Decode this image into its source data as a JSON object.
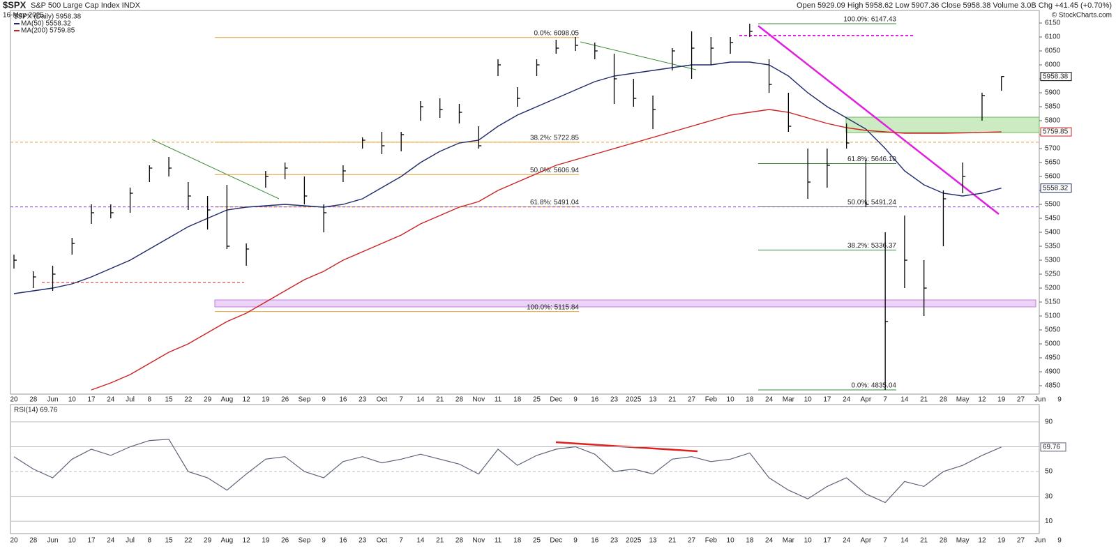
{
  "header": {
    "symbol": "$SPX",
    "name": "S&P 500 Large Cap Index INDX",
    "date": "16-May-2025",
    "quote": "Open 5929.09 High 5958.62 Low 5907.36 Close 5958.38 Volume 3.0B Chg +41.45 (+0.70%)",
    "credit": "© StockCharts.com"
  },
  "chart_data": [
    {
      "type": "ohlc",
      "categories": [
        "20",
        "28",
        "Jun",
        "10",
        "17",
        "24",
        "Jul",
        "8",
        "15",
        "22",
        "29",
        "Aug",
        "12",
        "19",
        "26",
        "Sep",
        "9",
        "16",
        "23",
        "Oct",
        "7",
        "14",
        "21",
        "28",
        "Nov",
        "11",
        "18",
        "25",
        "Dec",
        "9",
        "16",
        "23",
        "2025",
        "13",
        "21",
        "27",
        "Feb",
        "10",
        "18",
        "24",
        "Mar",
        "10",
        "17",
        "24",
        "Apr",
        "7",
        "14",
        "21",
        "28",
        "May",
        "12",
        "19",
        "27",
        "Jun",
        "9"
      ],
      "name": "$SPX (Daily) 5958.38",
      "color": "#000000",
      "high": [
        5320,
        5260,
        5280,
        5380,
        5500,
        5500,
        5560,
        5640,
        5670,
        5580,
        5530,
        5570,
        5360,
        5620,
        5650,
        5600,
        5500,
        5640,
        5740,
        5760,
        5760,
        5870,
        5880,
        5860,
        5780,
        6020,
        5920,
        6020,
        6090,
        6100,
        6080,
        6040,
        5950,
        5890,
        6060,
        6120,
        6100,
        6100,
        6147.43,
        6020,
        5900,
        5700,
        5700,
        5790,
        5660,
        5400,
        5460,
        5300,
        5550,
        5650,
        5900,
        5958.62,
        null,
        null,
        null
      ],
      "low": [
        5270,
        5200,
        5190,
        5320,
        5430,
        5450,
        5470,
        5580,
        5600,
        5480,
        5410,
        5340,
        5280,
        5560,
        5590,
        5500,
        5400,
        5580,
        5700,
        5680,
        5690,
        5800,
        5810,
        5790,
        5700,
        5960,
        5850,
        5960,
        6040,
        6050,
        6020,
        5860,
        5850,
        5770,
        5980,
        5950,
        6000,
        6040,
        6100,
        5900,
        5760,
        5520,
        5560,
        5700,
        5490,
        4835.04,
        5200,
        5100,
        5350,
        5540,
        5800,
        5907.36,
        null,
        null,
        null
      ],
      "close": [
        5300,
        5240,
        5250,
        5360,
        5470,
        5470,
        5540,
        5630,
        5630,
        5530,
        5480,
        5350,
        5340,
        5600,
        5630,
        5530,
        5470,
        5620,
        5730,
        5710,
        5750,
        5850,
        5840,
        5830,
        5710,
        6000,
        5880,
        6000,
        6060,
        6070,
        6050,
        5950,
        5880,
        5840,
        6050,
        6060,
        6060,
        6080,
        6120,
        5930,
        5780,
        5580,
        5640,
        5720,
        5500,
        5080,
        5300,
        5200,
        5520,
        5600,
        5890,
        5958.38,
        null,
        null,
        null
      ],
      "ma": [
        {
          "name": "MA(50) 5558.32",
          "color": "#1f2a6b",
          "values": [
            5180,
            5190,
            5200,
            5215,
            5240,
            5270,
            5300,
            5340,
            5380,
            5420,
            5450,
            5480,
            5490,
            5495,
            5500,
            5495,
            5490,
            5500,
            5520,
            5560,
            5600,
            5650,
            5690,
            5720,
            5730,
            5780,
            5820,
            5850,
            5880,
            5910,
            5940,
            5960,
            5970,
            5980,
            5990,
            6000,
            6000,
            6010,
            6010,
            6000,
            5960,
            5900,
            5850,
            5810,
            5770,
            5700,
            5620,
            5570,
            5540,
            5530,
            5540,
            5558.32,
            null,
            null,
            null
          ]
        },
        {
          "name": "MA(200) 5759.85",
          "color": "#cc2222",
          "values": [
            null,
            null,
            null,
            null,
            4835,
            4860,
            4890,
            4930,
            4970,
            5000,
            5040,
            5080,
            5110,
            5150,
            5190,
            5230,
            5260,
            5300,
            5330,
            5360,
            5390,
            5430,
            5460,
            5490,
            5510,
            5550,
            5580,
            5610,
            5640,
            5660,
            5680,
            5700,
            5720,
            5740,
            5760,
            5780,
            5800,
            5820,
            5830,
            5840,
            5830,
            5810,
            5790,
            5775,
            5765,
            5760,
            5755,
            5755,
            5755,
            5756,
            5758,
            5759.85,
            null,
            null,
            null
          ]
        }
      ],
      "fib_sets": [
        {
          "color": "#e8a030",
          "levels": [
            {
              "label": "0.0%: 6098.05",
              "value": 6098.05
            },
            {
              "label": "38.2%: 5722.85",
              "value": 5722.85
            },
            {
              "label": "50.0%: 5606.94",
              "value": 5606.94
            },
            {
              "label": "61.8%: 5491.04",
              "value": 5491.04
            },
            {
              "label": "100.0%: 5115.84",
              "value": 5115.84
            }
          ]
        },
        {
          "color": "#3a8a3a",
          "levels": [
            {
              "label": "100.0%: 6147.43",
              "value": 6147.43
            },
            {
              "label": "61.8%: 5646.10",
              "value": 5646.1
            },
            {
              "label": "50.0%: 5491.24",
              "value": 5491.24
            },
            {
              "label": "38.2%: 5336.37",
              "value": 5336.37
            },
            {
              "label": "0.0%: 4835.04",
              "value": 4835.04
            }
          ]
        }
      ],
      "ylim": [
        4820,
        6195
      ],
      "yticks": [
        4850,
        4900,
        4950,
        5000,
        5050,
        5100,
        5150,
        5200,
        5250,
        5300,
        5350,
        5400,
        5450,
        5500,
        5550,
        5600,
        5650,
        5700,
        5750,
        5800,
        5850,
        5900,
        5950,
        6000,
        6050,
        6100,
        6150
      ]
    },
    {
      "type": "line",
      "title": "RSI(14) 69.76",
      "color": "#5a6378",
      "values": [
        62,
        52,
        45,
        60,
        68,
        63,
        70,
        75,
        76,
        50,
        45,
        35,
        48,
        60,
        62,
        50,
        45,
        58,
        62,
        57,
        60,
        64,
        60,
        56,
        48,
        68,
        55,
        63,
        68,
        70,
        64,
        50,
        52,
        48,
        60,
        62,
        58,
        60,
        65,
        45,
        35,
        28,
        38,
        45,
        32,
        25,
        42,
        38,
        50,
        55,
        63,
        69.76,
        null,
        null,
        null
      ],
      "ylim": [
        0,
        104
      ],
      "yticks": [
        10,
        30,
        50,
        70,
        90
      ]
    }
  ]
}
